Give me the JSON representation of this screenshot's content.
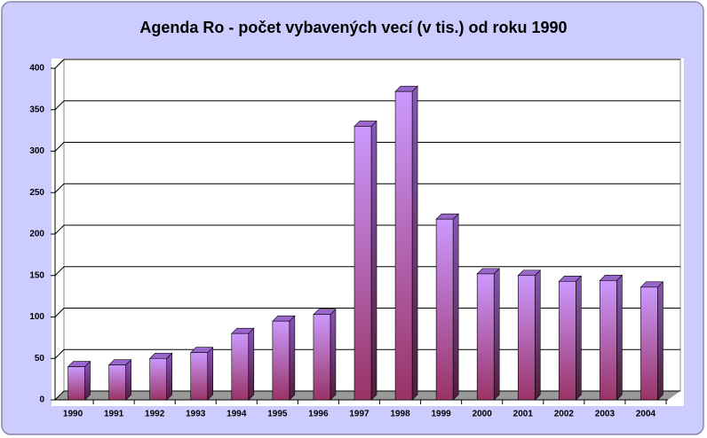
{
  "chart_data": {
    "type": "bar3d",
    "title": "Agenda Ro - počet vybavených vecí (v tis.) od roku 1990",
    "categories": [
      "1990",
      "1991",
      "1992",
      "1993",
      "1994",
      "1995",
      "1996",
      "1997",
      "1998",
      "1999",
      "2000",
      "2001",
      "2002",
      "2003",
      "2004"
    ],
    "values": [
      40,
      42,
      50,
      57,
      80,
      95,
      103,
      330,
      372,
      218,
      152,
      150,
      143,
      144,
      136
    ],
    "color": "#cc99ff",
    "ylim": [
      0,
      400
    ],
    "yticks": [
      0,
      50,
      100,
      150,
      200,
      250,
      300,
      350,
      400
    ],
    "grid": true
  }
}
